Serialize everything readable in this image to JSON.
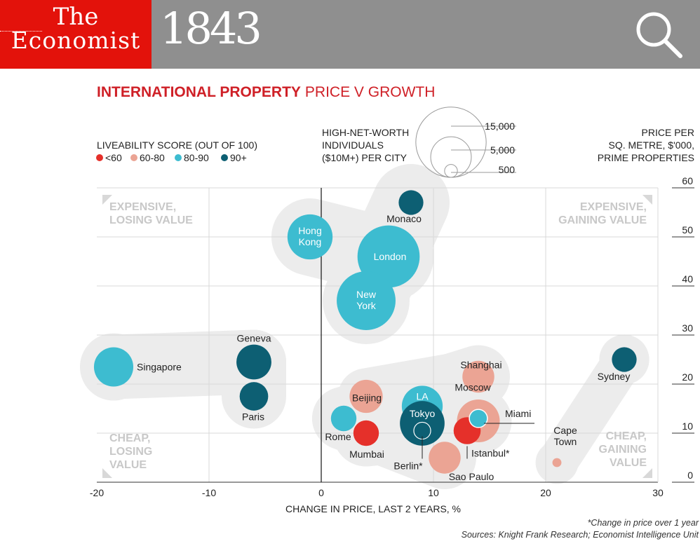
{
  "header": {
    "logo_line1": "The",
    "logo_line2": "Economist",
    "brand": "1843",
    "search_icon": "search-icon",
    "logo_color": "#e3120b",
    "bar_color": "#8f8f8f"
  },
  "chart_data": {
    "type": "scatter",
    "title_bold": "INTERNATIONAL PROPERTY",
    "title_rest": "PRICE V GROWTH",
    "xlabel": "CHANGE IN PRICE, LAST 2 YEARS, %",
    "ylabel": [
      "PRICE PER",
      "SQ. METRE, $'000,",
      "PRIME PROPERTIES"
    ],
    "xlim": [
      -20,
      30
    ],
    "ylim": [
      0,
      60
    ],
    "xticks": [
      -20,
      -10,
      0,
      10,
      20,
      30
    ],
    "yticks": [
      0,
      10,
      20,
      30,
      40,
      50,
      60
    ],
    "grid": true,
    "color_legend": {
      "title": "LIVEABILITY SCORE (OUT OF 100)",
      "items": [
        {
          "label": "<60",
          "color": "#e5302a"
        },
        {
          "label": "60-80",
          "color": "#eba494"
        },
        {
          "label": "80-90",
          "color": "#3dbcd0"
        },
        {
          "label": "90+",
          "color": "#0d5f73"
        }
      ]
    },
    "size_legend": {
      "title": [
        "HIGH-NET-WORTH",
        "INDIVIDUALS",
        "($10M+) PER CITY"
      ],
      "values": [
        15000,
        5000,
        500
      ],
      "labels": [
        "15,000",
        "5,000",
        "500"
      ]
    },
    "quadrants": [
      {
        "lines": [
          "EXPENSIVE,",
          "LOSING VALUE"
        ]
      },
      {
        "lines": [
          "EXPENSIVE,",
          "GAINING VALUE"
        ]
      },
      {
        "lines": [
          "CHEAP,",
          "LOSING",
          "VALUE"
        ]
      },
      {
        "lines": [
          "CHEAP,",
          "GAINING",
          "VALUE"
        ]
      }
    ],
    "points": [
      {
        "city": [
          "Monaco"
        ],
        "x": 8,
        "y": 57,
        "hnwi": 1500,
        "liveability": "90+"
      },
      {
        "city": [
          "Hong",
          "Kong"
        ],
        "x": -1,
        "y": 50,
        "hnwi": 5000,
        "liveability": "80-90"
      },
      {
        "city": [
          "London"
        ],
        "x": 6,
        "y": 46,
        "hnwi": 9500,
        "liveability": "80-90"
      },
      {
        "city": [
          "New",
          "York"
        ],
        "x": 4,
        "y": 37,
        "hnwi": 8500,
        "liveability": "80-90"
      },
      {
        "city": [
          "Singapore"
        ],
        "x": -18.5,
        "y": 23.5,
        "hnwi": 3800,
        "liveability": "80-90"
      },
      {
        "city": [
          "Geneva"
        ],
        "x": -6,
        "y": 24.5,
        "hnwi": 3000,
        "liveability": "90+"
      },
      {
        "city": [
          "Paris"
        ],
        "x": -6,
        "y": 17.5,
        "hnwi": 2000,
        "liveability": "90+"
      },
      {
        "city": [
          "Sydney"
        ],
        "x": 27,
        "y": 25,
        "hnwi": 1500,
        "liveability": "90+"
      },
      {
        "city": [
          "Shanghai"
        ],
        "x": 14,
        "y": 21.5,
        "hnwi": 2500,
        "liveability": "60-80"
      },
      {
        "city": [
          "Beijing"
        ],
        "x": 4,
        "y": 17.5,
        "hnwi": 2700,
        "liveability": "60-80"
      },
      {
        "city": [
          "LA"
        ],
        "x": 9,
        "y": 15.5,
        "hnwi": 4100,
        "liveability": "80-90"
      },
      {
        "city": [
          "Moscow"
        ],
        "x": 14,
        "y": 12.5,
        "hnwi": 4500,
        "liveability": "60-80"
      },
      {
        "city": [
          "Miami"
        ],
        "x": 14,
        "y": 13,
        "hnwi": 800,
        "liveability": "80-90"
      },
      {
        "city": [
          "Tokyo"
        ],
        "x": 9,
        "y": 12,
        "hnwi": 4900,
        "liveability": "90+"
      },
      {
        "city": [
          "Rome"
        ],
        "x": 2,
        "y": 13,
        "hnwi": 1600,
        "liveability": "80-90"
      },
      {
        "city": [
          "Mumbai"
        ],
        "x": 4,
        "y": 10,
        "hnwi": 1600,
        "liveability": "<60"
      },
      {
        "city": [
          "Berlin*"
        ],
        "x": 9,
        "y": 10.5,
        "hnwi": 700,
        "liveability": "90+"
      },
      {
        "city": [
          "Istanbul*"
        ],
        "x": 13,
        "y": 10.5,
        "hnwi": 1800,
        "liveability": "<60"
      },
      {
        "city": [
          "Sao Paulo"
        ],
        "x": 11,
        "y": 5,
        "hnwi": 2500,
        "liveability": "60-80"
      },
      {
        "city": [
          "Cape",
          "Town"
        ],
        "x": 21,
        "y": 4,
        "hnwi": 200,
        "liveability": "60-80"
      }
    ],
    "footnote": "*Change in price over 1 year",
    "source": "Sources: Knight Frank Research; Economist Intelligence Unit"
  }
}
